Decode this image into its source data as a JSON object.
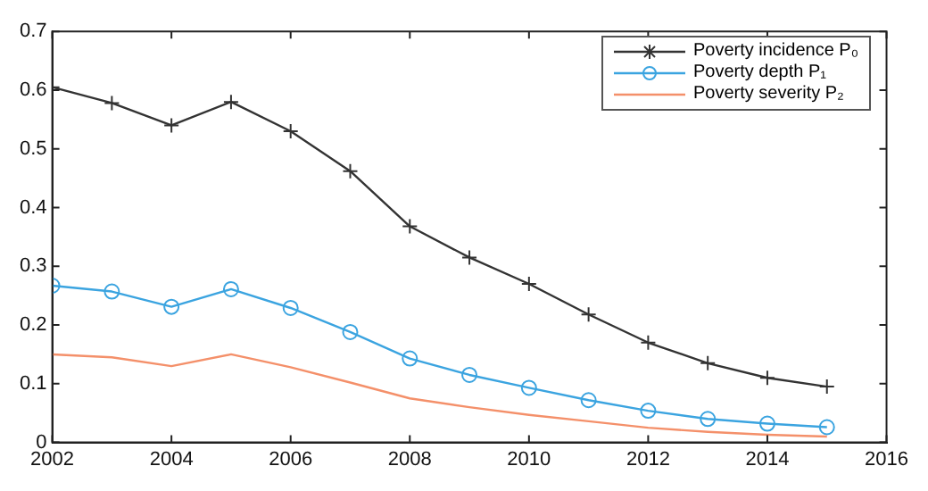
{
  "chart_data": {
    "type": "line",
    "x": [
      2002,
      2003,
      2004,
      2005,
      2006,
      2007,
      2008,
      2009,
      2010,
      2011,
      2012,
      2013,
      2014,
      2015
    ],
    "series": [
      {
        "name": "Poverty incidence P₀",
        "color": "#333333",
        "marker": "cross",
        "values": [
          0.605,
          0.578,
          0.54,
          0.58,
          0.53,
          0.462,
          0.368,
          0.315,
          0.27,
          0.218,
          0.17,
          0.135,
          0.11,
          0.095
        ]
      },
      {
        "name": "Poverty depth P₁",
        "color": "#3ba4e0",
        "marker": "circle",
        "values": [
          0.267,
          0.257,
          0.231,
          0.261,
          0.229,
          0.188,
          0.143,
          0.115,
          0.093,
          0.072,
          0.054,
          0.04,
          0.032,
          0.026
        ]
      },
      {
        "name": "Poverty severity P₂",
        "color": "#f4906a",
        "marker": "none",
        "values": [
          0.15,
          0.145,
          0.13,
          0.15,
          0.128,
          0.102,
          0.075,
          0.06,
          0.047,
          0.036,
          0.025,
          0.018,
          0.013,
          0.01
        ]
      }
    ],
    "xlim": [
      2002,
      2016
    ],
    "xticks": [
      2002,
      2004,
      2006,
      2008,
      2010,
      2012,
      2014,
      2016
    ],
    "ylim": [
      0,
      0.7
    ],
    "yticks": [
      0,
      0.1,
      0.2,
      0.3,
      0.4,
      0.5,
      0.6,
      0.7
    ],
    "grid": false,
    "legend": "top right"
  }
}
